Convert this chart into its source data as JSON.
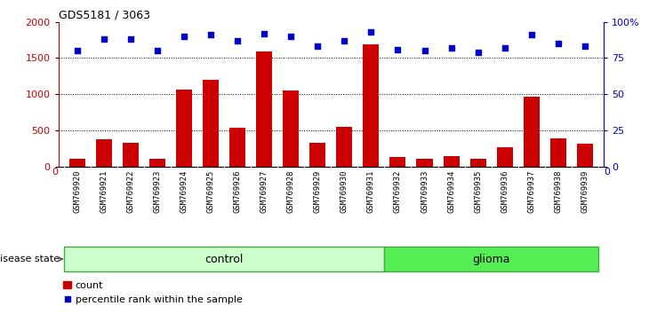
{
  "title": "GDS5181 / 3063",
  "samples": [
    "GSM769920",
    "GSM769921",
    "GSM769922",
    "GSM769923",
    "GSM769924",
    "GSM769925",
    "GSM769926",
    "GSM769927",
    "GSM769928",
    "GSM769929",
    "GSM769930",
    "GSM769931",
    "GSM769932",
    "GSM769933",
    "GSM769934",
    "GSM769935",
    "GSM769936",
    "GSM769937",
    "GSM769938",
    "GSM769939"
  ],
  "counts": [
    100,
    380,
    330,
    110,
    1060,
    1200,
    540,
    1590,
    1050,
    330,
    550,
    1690,
    130,
    110,
    145,
    110,
    260,
    960,
    390,
    310
  ],
  "percentile_ranks": [
    80,
    88,
    88,
    80,
    90,
    91,
    87,
    92,
    90,
    83,
    87,
    93,
    81,
    80,
    82,
    79,
    82,
    91,
    85,
    83
  ],
  "disease_groups": [
    {
      "label": "control",
      "start": 0,
      "end": 12,
      "color": "#ccffcc",
      "edge": "#44aa44"
    },
    {
      "label": "glioma",
      "start": 12,
      "end": 20,
      "color": "#55ee55",
      "edge": "#44aa44"
    }
  ],
  "bar_color": "#cc0000",
  "dot_color": "#0000cc",
  "left_ylim": [
    0,
    2000
  ],
  "right_ylim": [
    0,
    100
  ],
  "left_yticks": [
    0,
    500,
    1000,
    1500,
    2000
  ],
  "right_yticks": [
    0,
    25,
    50,
    75,
    100
  ],
  "right_yticklabels": [
    "0",
    "25",
    "50",
    "75",
    "100%"
  ],
  "grid_values": [
    500,
    1000,
    1500
  ],
  "axis_color_left": "#cc0000",
  "axis_color_right": "#0000cc",
  "plot_bg": "#ffffff",
  "fig_bg": "#ffffff",
  "xtick_bg": "#d0d0d0",
  "disease_state_label": "disease state",
  "legend_count_label": "count",
  "legend_pct_label": "percentile rank within the sample"
}
